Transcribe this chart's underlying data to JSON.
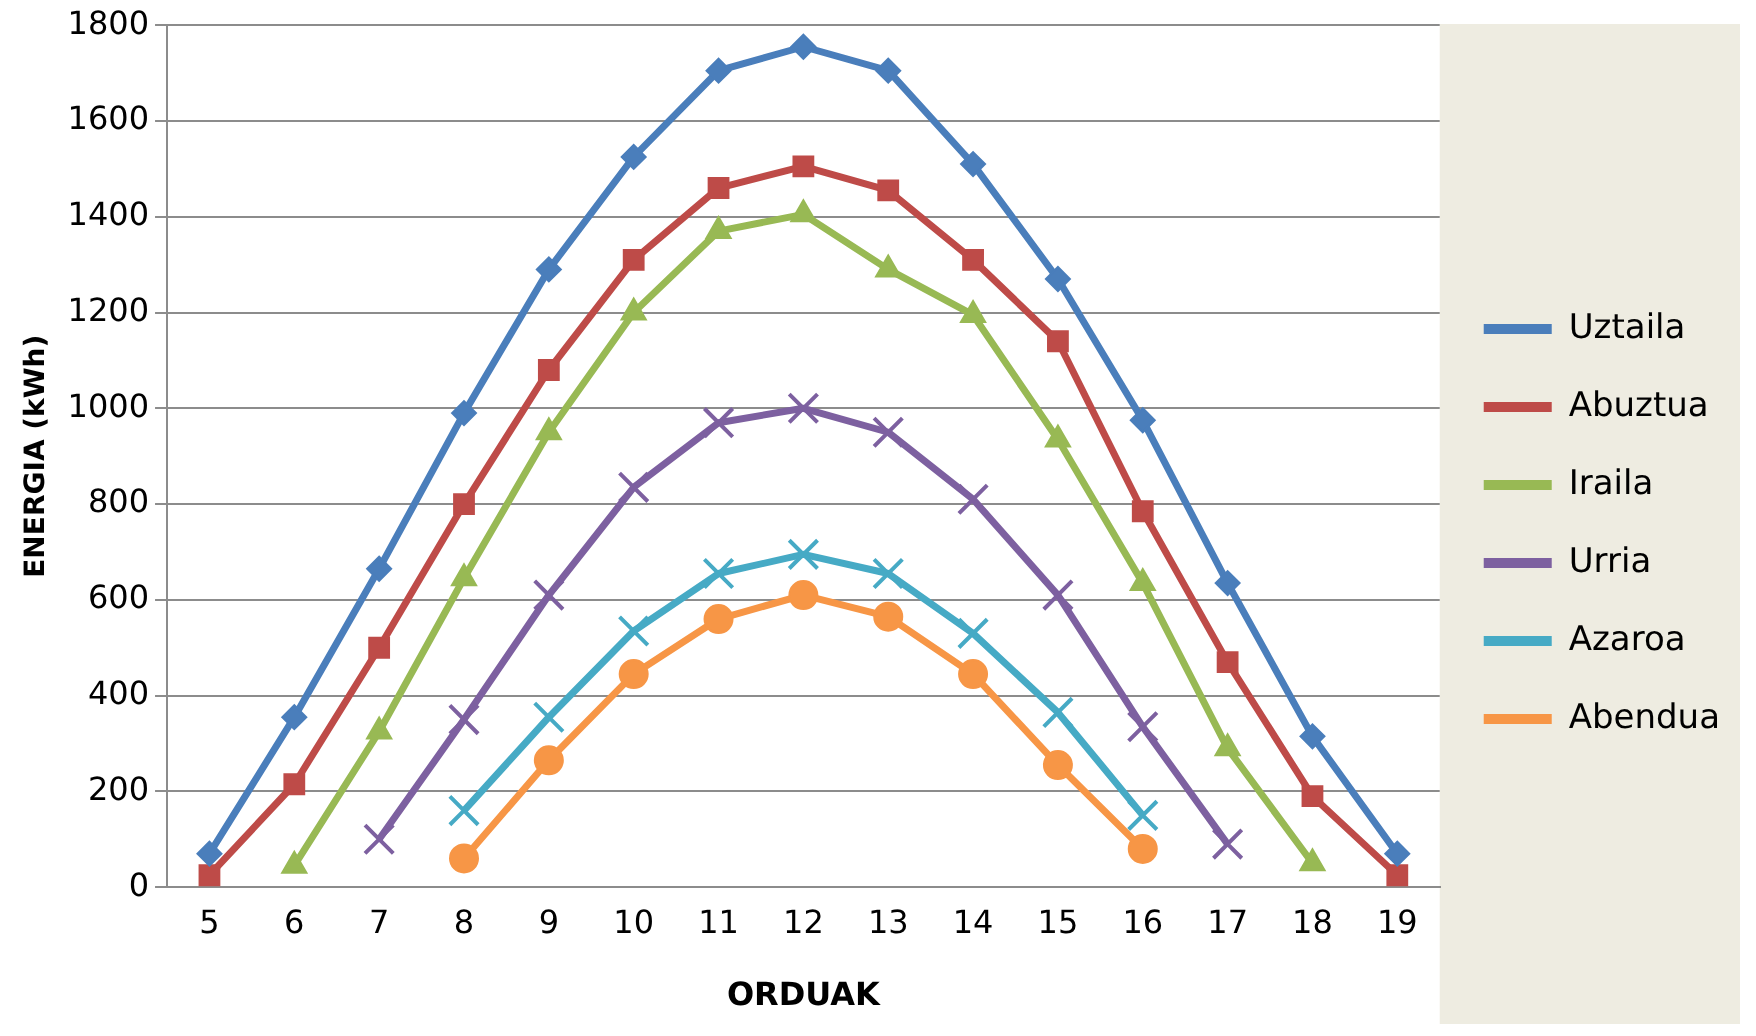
{
  "chart_data": {
    "type": "line",
    "xlabel": "ORDUAK",
    "ylabel": "ENERGIA (kWh)",
    "categories": [
      "5",
      "6",
      "7",
      "8",
      "9",
      "10",
      "11",
      "12",
      "13",
      "14",
      "15",
      "16",
      "17",
      "18",
      "19"
    ],
    "series": [
      {
        "name": "Uztaila",
        "color": "#4a7ebb",
        "marker": "diamond",
        "values": [
          70,
          355,
          665,
          990,
          1290,
          1525,
          1705,
          1755,
          1705,
          1510,
          1270,
          975,
          635,
          315,
          70
        ]
      },
      {
        "name": "Abuztua",
        "color": "#be4b48",
        "marker": "square",
        "values": [
          25,
          215,
          500,
          800,
          1080,
          1310,
          1460,
          1505,
          1455,
          1310,
          1140,
          785,
          470,
          190,
          25
        ]
      },
      {
        "name": "Iraila",
        "color": "#98b954",
        "marker": "triangle",
        "values": [
          null,
          45,
          325,
          645,
          950,
          1200,
          1370,
          1405,
          1290,
          1195,
          935,
          635,
          290,
          50,
          null
        ]
      },
      {
        "name": "Urria",
        "color": "#7d60a0",
        "marker": "cross",
        "values": [
          null,
          null,
          100,
          350,
          610,
          835,
          970,
          1000,
          950,
          810,
          610,
          335,
          90,
          null,
          null
        ]
      },
      {
        "name": "Azaroa",
        "color": "#46aac5",
        "marker": "cross",
        "values": [
          null,
          null,
          null,
          160,
          355,
          535,
          655,
          695,
          655,
          530,
          365,
          150,
          null,
          null,
          null
        ]
      },
      {
        "name": "Abendua",
        "color": "#f79646",
        "marker": "circle",
        "values": [
          null,
          null,
          null,
          60,
          265,
          445,
          560,
          610,
          565,
          445,
          255,
          80,
          null,
          null,
          null
        ]
      }
    ],
    "ylim": [
      0,
      1800
    ],
    "yticks": [
      0,
      200,
      400,
      600,
      800,
      1000,
      1200,
      1400,
      1600,
      1800
    ],
    "grid": "y",
    "legend": "right"
  }
}
